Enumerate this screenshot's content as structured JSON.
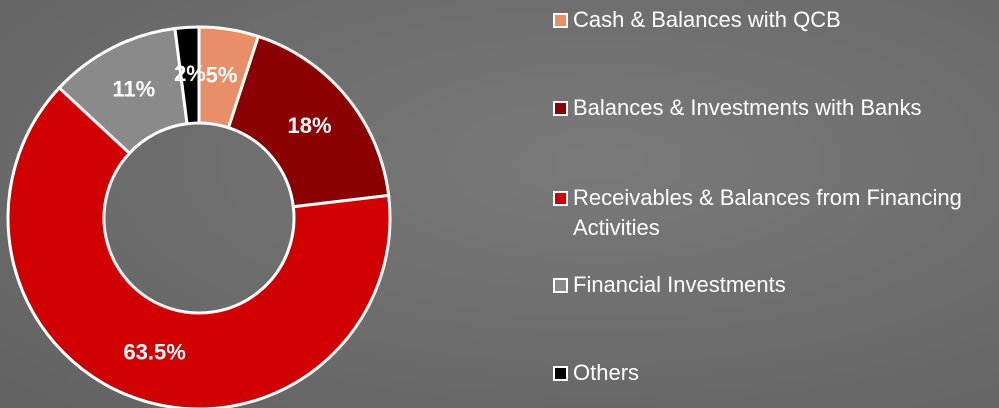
{
  "chart_data": {
    "type": "donut",
    "categories": [
      "Cash & Balances with QCB",
      "Balances & Investments with Banks",
      "Receivables & Balances from Financing Activities",
      "Financial Investments",
      "Others"
    ],
    "values": [
      5,
      18,
      63.5,
      11,
      2
    ],
    "value_labels": [
      "5%",
      "18%",
      "63.5%",
      "11%",
      "2%"
    ],
    "colors": [
      "#e88f68",
      "#8b0000",
      "#d10000",
      "#8a8a8a",
      "#000000"
    ]
  }
}
